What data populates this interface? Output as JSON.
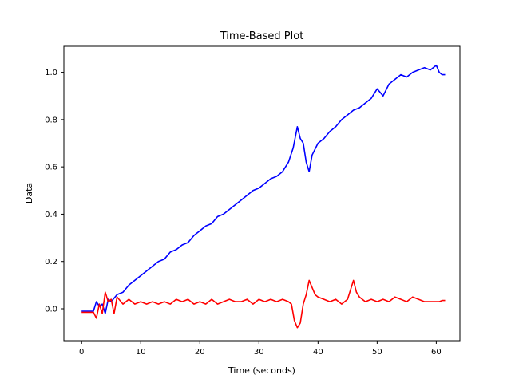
{
  "chart_data": {
    "type": "line",
    "title": "Time-Based Plot",
    "xlabel": "Time (seconds)",
    "ylabel": "Data",
    "xlim": [
      -3,
      64
    ],
    "ylim": [
      -0.135,
      1.11
    ],
    "x_ticks": [
      0,
      10,
      20,
      30,
      40,
      50,
      60
    ],
    "y_ticks": [
      0.0,
      0.2,
      0.4,
      0.6,
      0.8,
      1.0
    ],
    "x_tick_labels": [
      "0",
      "10",
      "20",
      "30",
      "40",
      "50",
      "60"
    ],
    "y_tick_labels": [
      "0.0",
      "0.2",
      "0.4",
      "0.6",
      "0.8",
      "1.0"
    ],
    "grid": false,
    "series": [
      {
        "color": "#0000ff",
        "x": [
          0,
          1,
          2,
          2.5,
          3,
          3.5,
          4,
          4.5,
          5,
          6,
          7,
          8,
          9,
          10,
          11,
          12,
          13,
          14,
          15,
          16,
          17,
          18,
          19,
          20,
          21,
          22,
          23,
          24,
          25,
          26,
          27,
          28,
          29,
          30,
          31,
          32,
          33,
          34,
          35,
          35.8,
          36.5,
          37,
          37.5,
          38,
          38.5,
          39,
          40,
          41,
          42,
          43,
          44,
          45,
          46,
          47,
          48,
          49,
          50,
          51,
          52,
          53,
          54,
          55,
          56,
          57,
          58,
          59,
          60,
          60.5,
          61,
          61.5
        ],
        "y": [
          -0.01,
          -0.01,
          -0.01,
          0.03,
          0.01,
          0.02,
          -0.02,
          0.04,
          0.03,
          0.06,
          0.07,
          0.1,
          0.12,
          0.14,
          0.16,
          0.18,
          0.2,
          0.21,
          0.24,
          0.25,
          0.27,
          0.28,
          0.31,
          0.33,
          0.35,
          0.36,
          0.39,
          0.4,
          0.42,
          0.44,
          0.46,
          0.48,
          0.5,
          0.51,
          0.53,
          0.55,
          0.56,
          0.58,
          0.62,
          0.68,
          0.77,
          0.72,
          0.7,
          0.62,
          0.58,
          0.65,
          0.7,
          0.72,
          0.75,
          0.77,
          0.8,
          0.82,
          0.84,
          0.85,
          0.87,
          0.89,
          0.93,
          0.9,
          0.95,
          0.97,
          0.99,
          0.98,
          1.0,
          1.01,
          1.02,
          1.01,
          1.03,
          1.0,
          0.99,
          0.99
        ]
      },
      {
        "color": "#ff0000",
        "x": [
          0,
          1,
          2,
          2.5,
          3,
          3.5,
          4,
          4.5,
          5,
          5.5,
          6,
          7,
          8,
          9,
          10,
          11,
          12,
          13,
          14,
          15,
          16,
          17,
          18,
          19,
          20,
          21,
          22,
          23,
          24,
          25,
          26,
          27,
          28,
          29,
          30,
          31,
          32,
          33,
          34,
          35,
          35.5,
          36,
          36.5,
          37,
          37.5,
          38,
          38.5,
          39,
          39.5,
          40,
          41,
          42,
          43,
          44,
          45,
          45.5,
          46,
          46.5,
          47,
          48,
          49,
          50,
          51,
          52,
          53,
          54,
          55,
          56,
          57,
          58,
          59,
          60,
          60.5,
          61,
          61.5
        ],
        "y": [
          -0.015,
          -0.015,
          -0.015,
          -0.04,
          0.02,
          -0.02,
          0.07,
          0.03,
          0.04,
          -0.02,
          0.05,
          0.02,
          0.04,
          0.02,
          0.03,
          0.02,
          0.03,
          0.02,
          0.03,
          0.02,
          0.04,
          0.03,
          0.04,
          0.02,
          0.03,
          0.02,
          0.04,
          0.02,
          0.03,
          0.04,
          0.03,
          0.03,
          0.04,
          0.02,
          0.04,
          0.03,
          0.04,
          0.03,
          0.04,
          0.03,
          0.02,
          -0.05,
          -0.08,
          -0.06,
          0.02,
          0.06,
          0.12,
          0.09,
          0.06,
          0.05,
          0.04,
          0.03,
          0.04,
          0.02,
          0.04,
          0.08,
          0.12,
          0.07,
          0.05,
          0.03,
          0.04,
          0.03,
          0.04,
          0.03,
          0.05,
          0.04,
          0.03,
          0.05,
          0.04,
          0.03,
          0.03,
          0.03,
          0.03,
          0.035,
          0.035
        ]
      }
    ]
  }
}
